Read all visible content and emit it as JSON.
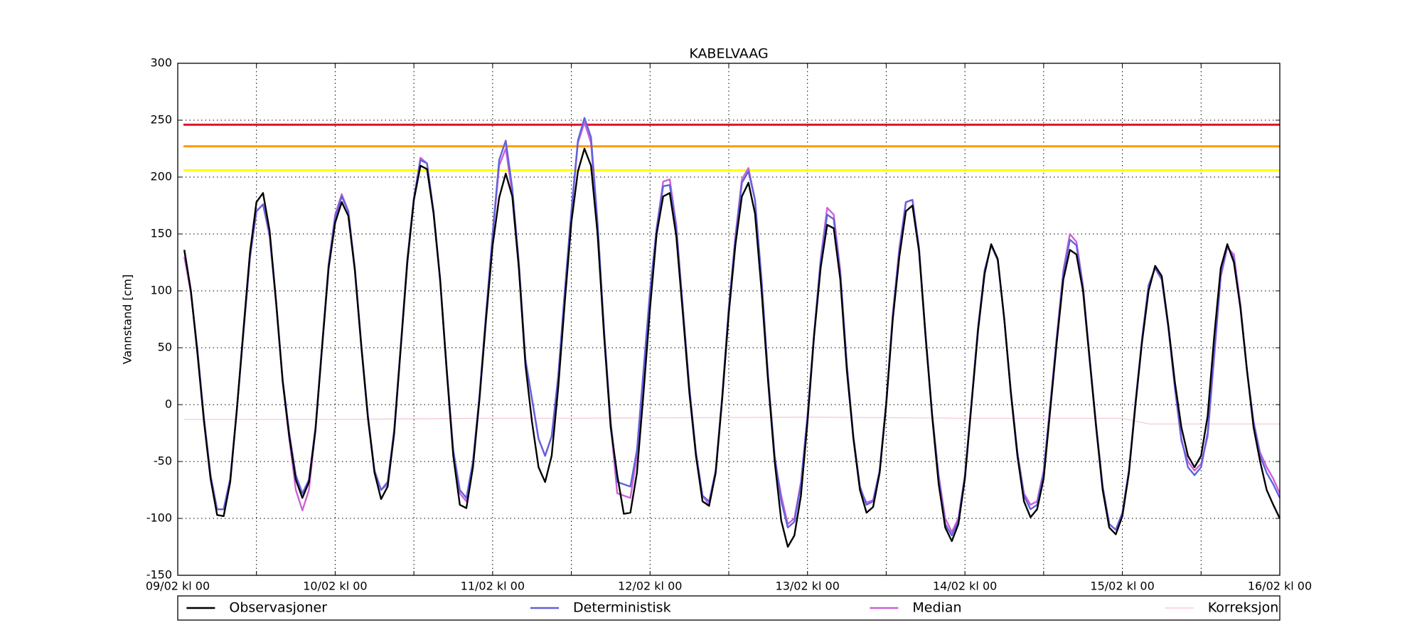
{
  "chart_data": {
    "type": "line",
    "title": "KABELVAAG",
    "ylabel": "Vannstand [cm]",
    "x": [
      1,
      2,
      3,
      4,
      5,
      6,
      7,
      8,
      9,
      10,
      11,
      12,
      13,
      14,
      15,
      16,
      17,
      18,
      19,
      20,
      21,
      22,
      23,
      24,
      25,
      26,
      27,
      28,
      29,
      30,
      31,
      32,
      33,
      34,
      35,
      36,
      37,
      38,
      39,
      40,
      41,
      42,
      43,
      44,
      45,
      46,
      47,
      48,
      49,
      50,
      51,
      52,
      53,
      54,
      55,
      56,
      57,
      58,
      59,
      60,
      61,
      62,
      63,
      64,
      65,
      66,
      67,
      68,
      69,
      70,
      71,
      72,
      73,
      74,
      75,
      76,
      77,
      78,
      79,
      80,
      81,
      82,
      83,
      84,
      85,
      86,
      87,
      88,
      89,
      90,
      91,
      92,
      93,
      94,
      95,
      96,
      97,
      98,
      99,
      100,
      101,
      102,
      103,
      104,
      105,
      106,
      107,
      108,
      109,
      110,
      111,
      112,
      113,
      114,
      115,
      116,
      117,
      118,
      119,
      120,
      121,
      122,
      123,
      124,
      125,
      126,
      127,
      128,
      129,
      130,
      131,
      132,
      133,
      134,
      135,
      136,
      137,
      138,
      139,
      140,
      141,
      142,
      143,
      144,
      145,
      146,
      147,
      148,
      149,
      150,
      151,
      152,
      153,
      154,
      155,
      156,
      157,
      158,
      159,
      160,
      161,
      162,
      163,
      164,
      165,
      166,
      167,
      168
    ],
    "xlim": [
      0,
      168
    ],
    "xticks": [
      {
        "value": 0,
        "label": "09/02 kl 00"
      },
      {
        "value": 24,
        "label": "10/02 kl 00"
      },
      {
        "value": 48,
        "label": "11/02 kl 00"
      },
      {
        "value": 72,
        "label": "12/02 kl 00"
      },
      {
        "value": 96,
        "label": "13/02 kl 00"
      },
      {
        "value": 120,
        "label": "14/02 kl 00"
      },
      {
        "value": 144,
        "label": "15/02 kl 00"
      },
      {
        "value": 168,
        "label": "16/02 kl 00"
      }
    ],
    "xminorticks": [
      12,
      36,
      60,
      84,
      108,
      132,
      156
    ],
    "ylim": [
      -150,
      300
    ],
    "yticks": [
      -150,
      -100,
      -50,
      0,
      50,
      100,
      150,
      200,
      250,
      300
    ],
    "grid": true,
    "reference_lines": [
      {
        "value": 246,
        "color": "#e3122b"
      },
      {
        "value": 227,
        "color": "#ff9a00"
      },
      {
        "value": 206,
        "color": "#ffff00"
      }
    ],
    "series": [
      {
        "name": "Observasjoner",
        "color": "#000000",
        "values": [
          136,
          100,
          45,
          -15,
          -65,
          -97,
          -98,
          -68,
          -5,
          65,
          133,
          178,
          186,
          153,
          90,
          20,
          -28,
          -66,
          -82,
          -68,
          -22,
          50,
          120,
          160,
          178,
          166,
          118,
          50,
          -12,
          -60,
          -83,
          -72,
          -25,
          50,
          125,
          180,
          210,
          207,
          168,
          110,
          30,
          -45,
          -88,
          -91,
          -55,
          5,
          75,
          140,
          182,
          203,
          183,
          120,
          35,
          -15,
          -55,
          -68,
          -45,
          15,
          90,
          160,
          205,
          225,
          210,
          150,
          60,
          -20,
          -62,
          -96,
          -95,
          -60,
          10,
          85,
          150,
          183,
          186,
          148,
          80,
          10,
          -45,
          -85,
          -89,
          -60,
          5,
          80,
          140,
          183,
          195,
          168,
          100,
          20,
          -50,
          -102,
          -125,
          -115,
          -80,
          -15,
          60,
          120,
          158,
          155,
          110,
          30,
          -30,
          -75,
          -95,
          -90,
          -60,
          0,
          75,
          130,
          170,
          175,
          135,
          60,
          -10,
          -70,
          -108,
          -120,
          -105,
          -65,
          0,
          65,
          115,
          141,
          128,
          75,
          10,
          -45,
          -85,
          -99,
          -92,
          -65,
          -5,
          55,
          110,
          136,
          132,
          100,
          40,
          -20,
          -75,
          -108,
          -114,
          -98,
          -60,
          0,
          55,
          100,
          122,
          113,
          70,
          20,
          -20,
          -45,
          -55,
          -45,
          -10,
          60,
          120,
          141,
          125,
          85,
          30,
          -20,
          -50,
          -75,
          -88,
          -100
        ]
      },
      {
        "name": "Deterministisk",
        "color": "#6161dc",
        "values": [
          136,
          100,
          48,
          -12,
          -62,
          -92,
          -92,
          -65,
          -5,
          62,
          130,
          170,
          176,
          150,
          90,
          22,
          -25,
          -62,
          -78,
          -66,
          -20,
          52,
          122,
          165,
          183,
          170,
          120,
          52,
          -10,
          -58,
          -75,
          -68,
          -22,
          52,
          128,
          182,
          215,
          212,
          170,
          110,
          32,
          -40,
          -75,
          -82,
          -50,
          8,
          80,
          150,
          215,
          232,
          190,
          125,
          40,
          5,
          -30,
          -45,
          -28,
          25,
          100,
          170,
          232,
          252,
          235,
          160,
          65,
          -15,
          -68,
          -70,
          -72,
          -40,
          30,
          100,
          155,
          192,
          193,
          155,
          85,
          15,
          -42,
          -80,
          -85,
          -58,
          8,
          85,
          145,
          195,
          205,
          180,
          110,
          25,
          -45,
          -85,
          -108,
          -103,
          -70,
          -10,
          62,
          125,
          167,
          163,
          115,
          35,
          -28,
          -72,
          -88,
          -85,
          -58,
          2,
          78,
          135,
          178,
          180,
          138,
          62,
          -8,
          -65,
          -105,
          -115,
          -102,
          -62,
          2,
          68,
          118,
          140,
          127,
          75,
          12,
          -42,
          -80,
          -92,
          -88,
          -60,
          -2,
          58,
          115,
          145,
          140,
          102,
          42,
          -18,
          -72,
          -105,
          -110,
          -95,
          -58,
          2,
          58,
          105,
          120,
          110,
          68,
          15,
          -30,
          -55,
          -62,
          -55,
          -25,
          45,
          115,
          140,
          128,
          85,
          30,
          -15,
          -45,
          -60,
          -70,
          -82
        ]
      },
      {
        "name": "Median",
        "color": "#cc62d8",
        "values": [
          130,
          98,
          48,
          -12,
          -62,
          -92,
          -92,
          -65,
          -5,
          62,
          128,
          170,
          176,
          148,
          88,
          20,
          -30,
          -75,
          -93,
          -75,
          -22,
          52,
          124,
          167,
          185,
          170,
          118,
          50,
          -12,
          -60,
          -75,
          -70,
          -22,
          52,
          128,
          180,
          217,
          212,
          168,
          108,
          30,
          -42,
          -78,
          -85,
          -52,
          8,
          80,
          148,
          210,
          225,
          185,
          120,
          38,
          5,
          -30,
          -45,
          -28,
          25,
          98,
          168,
          230,
          248,
          230,
          155,
          62,
          -18,
          -78,
          -80,
          -82,
          -45,
          28,
          98,
          155,
          196,
          198,
          158,
          85,
          12,
          -45,
          -80,
          -88,
          -60,
          6,
          85,
          148,
          198,
          208,
          180,
          108,
          22,
          -48,
          -80,
          -105,
          -100,
          -68,
          -10,
          62,
          128,
          173,
          167,
          118,
          35,
          -30,
          -75,
          -86,
          -84,
          -58,
          2,
          80,
          138,
          178,
          180,
          138,
          60,
          -8,
          -62,
          -100,
          -112,
          -100,
          -62,
          2,
          68,
          118,
          140,
          128,
          75,
          12,
          -42,
          -78,
          -88,
          -85,
          -58,
          0,
          60,
          118,
          150,
          143,
          105,
          42,
          -18,
          -72,
          -105,
          -110,
          -95,
          -58,
          2,
          58,
          105,
          120,
          110,
          68,
          15,
          -32,
          -50,
          -58,
          -52,
          -28,
          42,
          112,
          138,
          132,
          88,
          30,
          -15,
          -42,
          -55,
          -65,
          -78
        ]
      },
      {
        "name": "Korreksjon",
        "color": "#f6c4cf",
        "x": [
          1,
          24,
          48,
          60,
          96,
          120,
          144,
          148,
          168
        ],
        "values": [
          -13,
          -13,
          -12,
          -12,
          -11,
          -12,
          -12,
          -17,
          -17
        ]
      }
    ]
  }
}
